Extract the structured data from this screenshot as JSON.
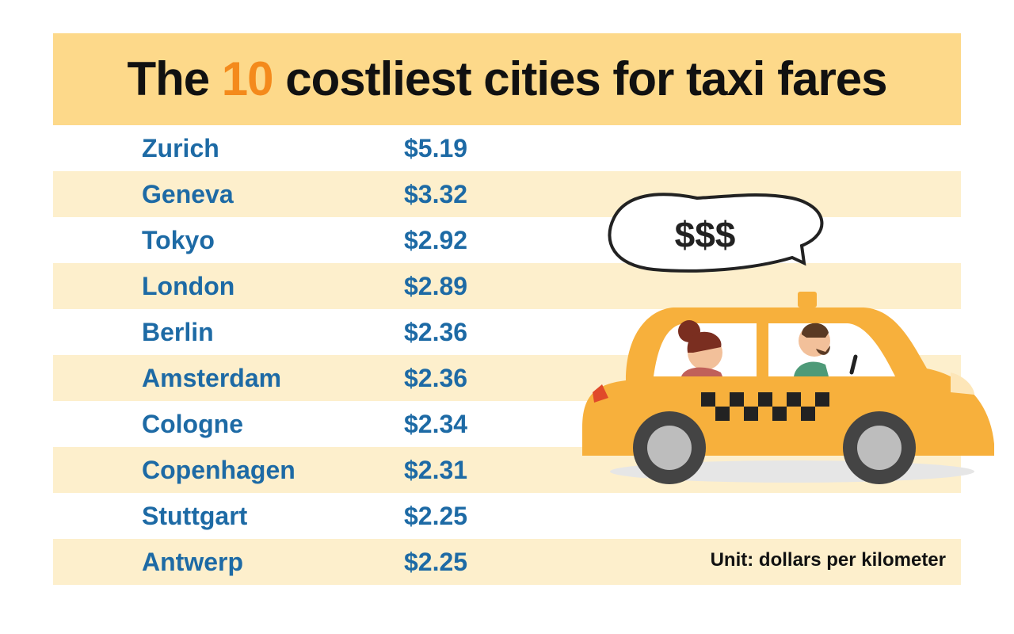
{
  "chart_data": {
    "type": "table",
    "title_parts": [
      "The ",
      "10",
      " costliest cities for taxi fares"
    ],
    "columns": [
      "City",
      "Fare"
    ],
    "rows": [
      {
        "city": "Zurich",
        "value_label": "$5.19",
        "value": 5.19
      },
      {
        "city": "Geneva",
        "value_label": "$3.32",
        "value": 3.32
      },
      {
        "city": "Tokyo",
        "value_label": "$2.92",
        "value": 2.92
      },
      {
        "city": "London",
        "value_label": "$2.89",
        "value": 2.89
      },
      {
        "city": "Berlin",
        "value_label": "$2.36",
        "value": 2.36
      },
      {
        "city": "Amsterdam",
        "value_label": "$2.36",
        "value": 2.36
      },
      {
        "city": "Cologne",
        "value_label": "$2.34",
        "value": 2.34
      },
      {
        "city": "Copenhagen",
        "value_label": "$2.31",
        "value": 2.31
      },
      {
        "city": "Stuttgart",
        "value_label": "$2.25",
        "value": 2.25
      },
      {
        "city": "Antwerp",
        "value_label": "$2.25",
        "value": 2.25
      }
    ],
    "unit_note": "Unit: dollars per kilometer"
  },
  "illustration": {
    "description_icon": "taxi-with-speech-bubble-icon",
    "bubble_text": "$$$"
  },
  "colors": {
    "header_bg": "#fdd98a",
    "highlight": "#f48a1c",
    "text_blue": "#1d6aa5",
    "row_alt": "#fdefcc",
    "taxi_yellow": "#f7b03c"
  }
}
